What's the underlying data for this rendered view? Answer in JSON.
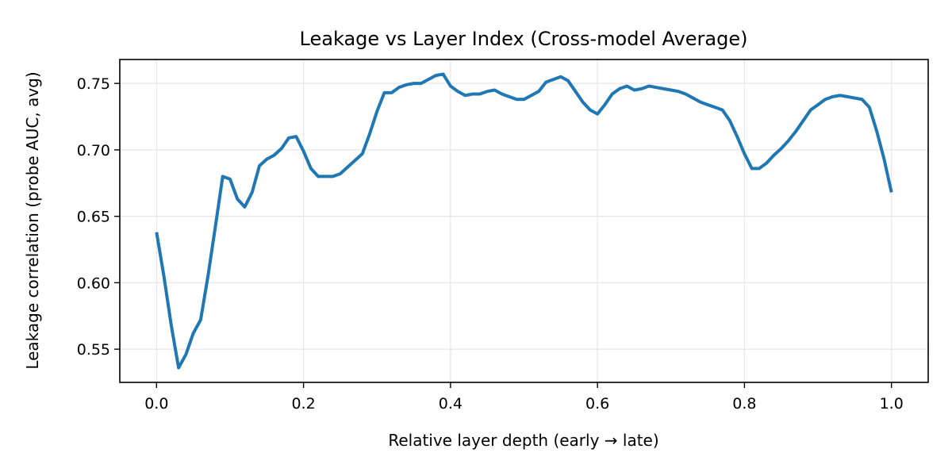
{
  "chart_data": {
    "type": "line",
    "title": "Leakage vs Layer Index (Cross-model Average)",
    "xlabel": "Relative layer depth (early → late)",
    "ylabel": "Leakage correlation (probe AUC, avg)",
    "xlim": [
      -0.05,
      1.05
    ],
    "ylim": [
      0.525,
      0.768
    ],
    "xticks": [
      0.0,
      0.2,
      0.4,
      0.6,
      0.8,
      1.0
    ],
    "xtick_labels": [
      "0.0",
      "0.2",
      "0.4",
      "0.6",
      "0.8",
      "1.0"
    ],
    "yticks": [
      0.55,
      0.6,
      0.65,
      0.7,
      0.75
    ],
    "ytick_labels": [
      "0.55",
      "0.60",
      "0.65",
      "0.70",
      "0.75"
    ],
    "grid": true,
    "series": [
      {
        "color": "#1f77b4",
        "x": [
          0.0,
          0.01,
          0.02,
          0.03,
          0.04,
          0.05,
          0.06,
          0.07,
          0.08,
          0.09,
          0.1,
          0.11,
          0.12,
          0.13,
          0.14,
          0.15,
          0.16,
          0.17,
          0.18,
          0.19,
          0.2,
          0.21,
          0.22,
          0.23,
          0.24,
          0.25,
          0.26,
          0.27,
          0.28,
          0.29,
          0.3,
          0.31,
          0.32,
          0.33,
          0.34,
          0.35,
          0.36,
          0.37,
          0.38,
          0.39,
          0.4,
          0.41,
          0.42,
          0.43,
          0.44,
          0.45,
          0.46,
          0.47,
          0.48,
          0.49,
          0.5,
          0.51,
          0.52,
          0.53,
          0.54,
          0.55,
          0.56,
          0.57,
          0.58,
          0.59,
          0.6,
          0.61,
          0.62,
          0.63,
          0.64,
          0.65,
          0.66,
          0.67,
          0.68,
          0.69,
          0.7,
          0.71,
          0.72,
          0.73,
          0.74,
          0.75,
          0.76,
          0.77,
          0.78,
          0.79,
          0.8,
          0.81,
          0.82,
          0.83,
          0.84,
          0.85,
          0.86,
          0.87,
          0.88,
          0.89,
          0.9,
          0.91,
          0.92,
          0.93,
          0.94,
          0.95,
          0.96,
          0.97,
          0.98,
          0.99,
          1.0
        ],
        "y": [
          0.638,
          0.605,
          0.568,
          0.536,
          0.546,
          0.562,
          0.572,
          0.605,
          0.642,
          0.68,
          0.678,
          0.663,
          0.657,
          0.668,
          0.688,
          0.693,
          0.696,
          0.701,
          0.709,
          0.71,
          0.699,
          0.686,
          0.68,
          0.68,
          0.68,
          0.682,
          0.687,
          0.692,
          0.697,
          0.712,
          0.729,
          0.743,
          0.743,
          0.747,
          0.749,
          0.75,
          0.75,
          0.753,
          0.756,
          0.757,
          0.748,
          0.744,
          0.741,
          0.742,
          0.742,
          0.744,
          0.745,
          0.742,
          0.74,
          0.738,
          0.738,
          0.741,
          0.744,
          0.751,
          0.753,
          0.755,
          0.752,
          0.744,
          0.736,
          0.73,
          0.727,
          0.734,
          0.742,
          0.746,
          0.748,
          0.745,
          0.746,
          0.748,
          0.747,
          0.746,
          0.745,
          0.744,
          0.742,
          0.739,
          0.736,
          0.734,
          0.732,
          0.73,
          0.722,
          0.71,
          0.697,
          0.686,
          0.686,
          0.69,
          0.696,
          0.701,
          0.707,
          0.714,
          0.722,
          0.73,
          0.734,
          0.738,
          0.74,
          0.741,
          0.74,
          0.739,
          0.738,
          0.732,
          0.714,
          0.693,
          0.668
        ]
      }
    ]
  }
}
